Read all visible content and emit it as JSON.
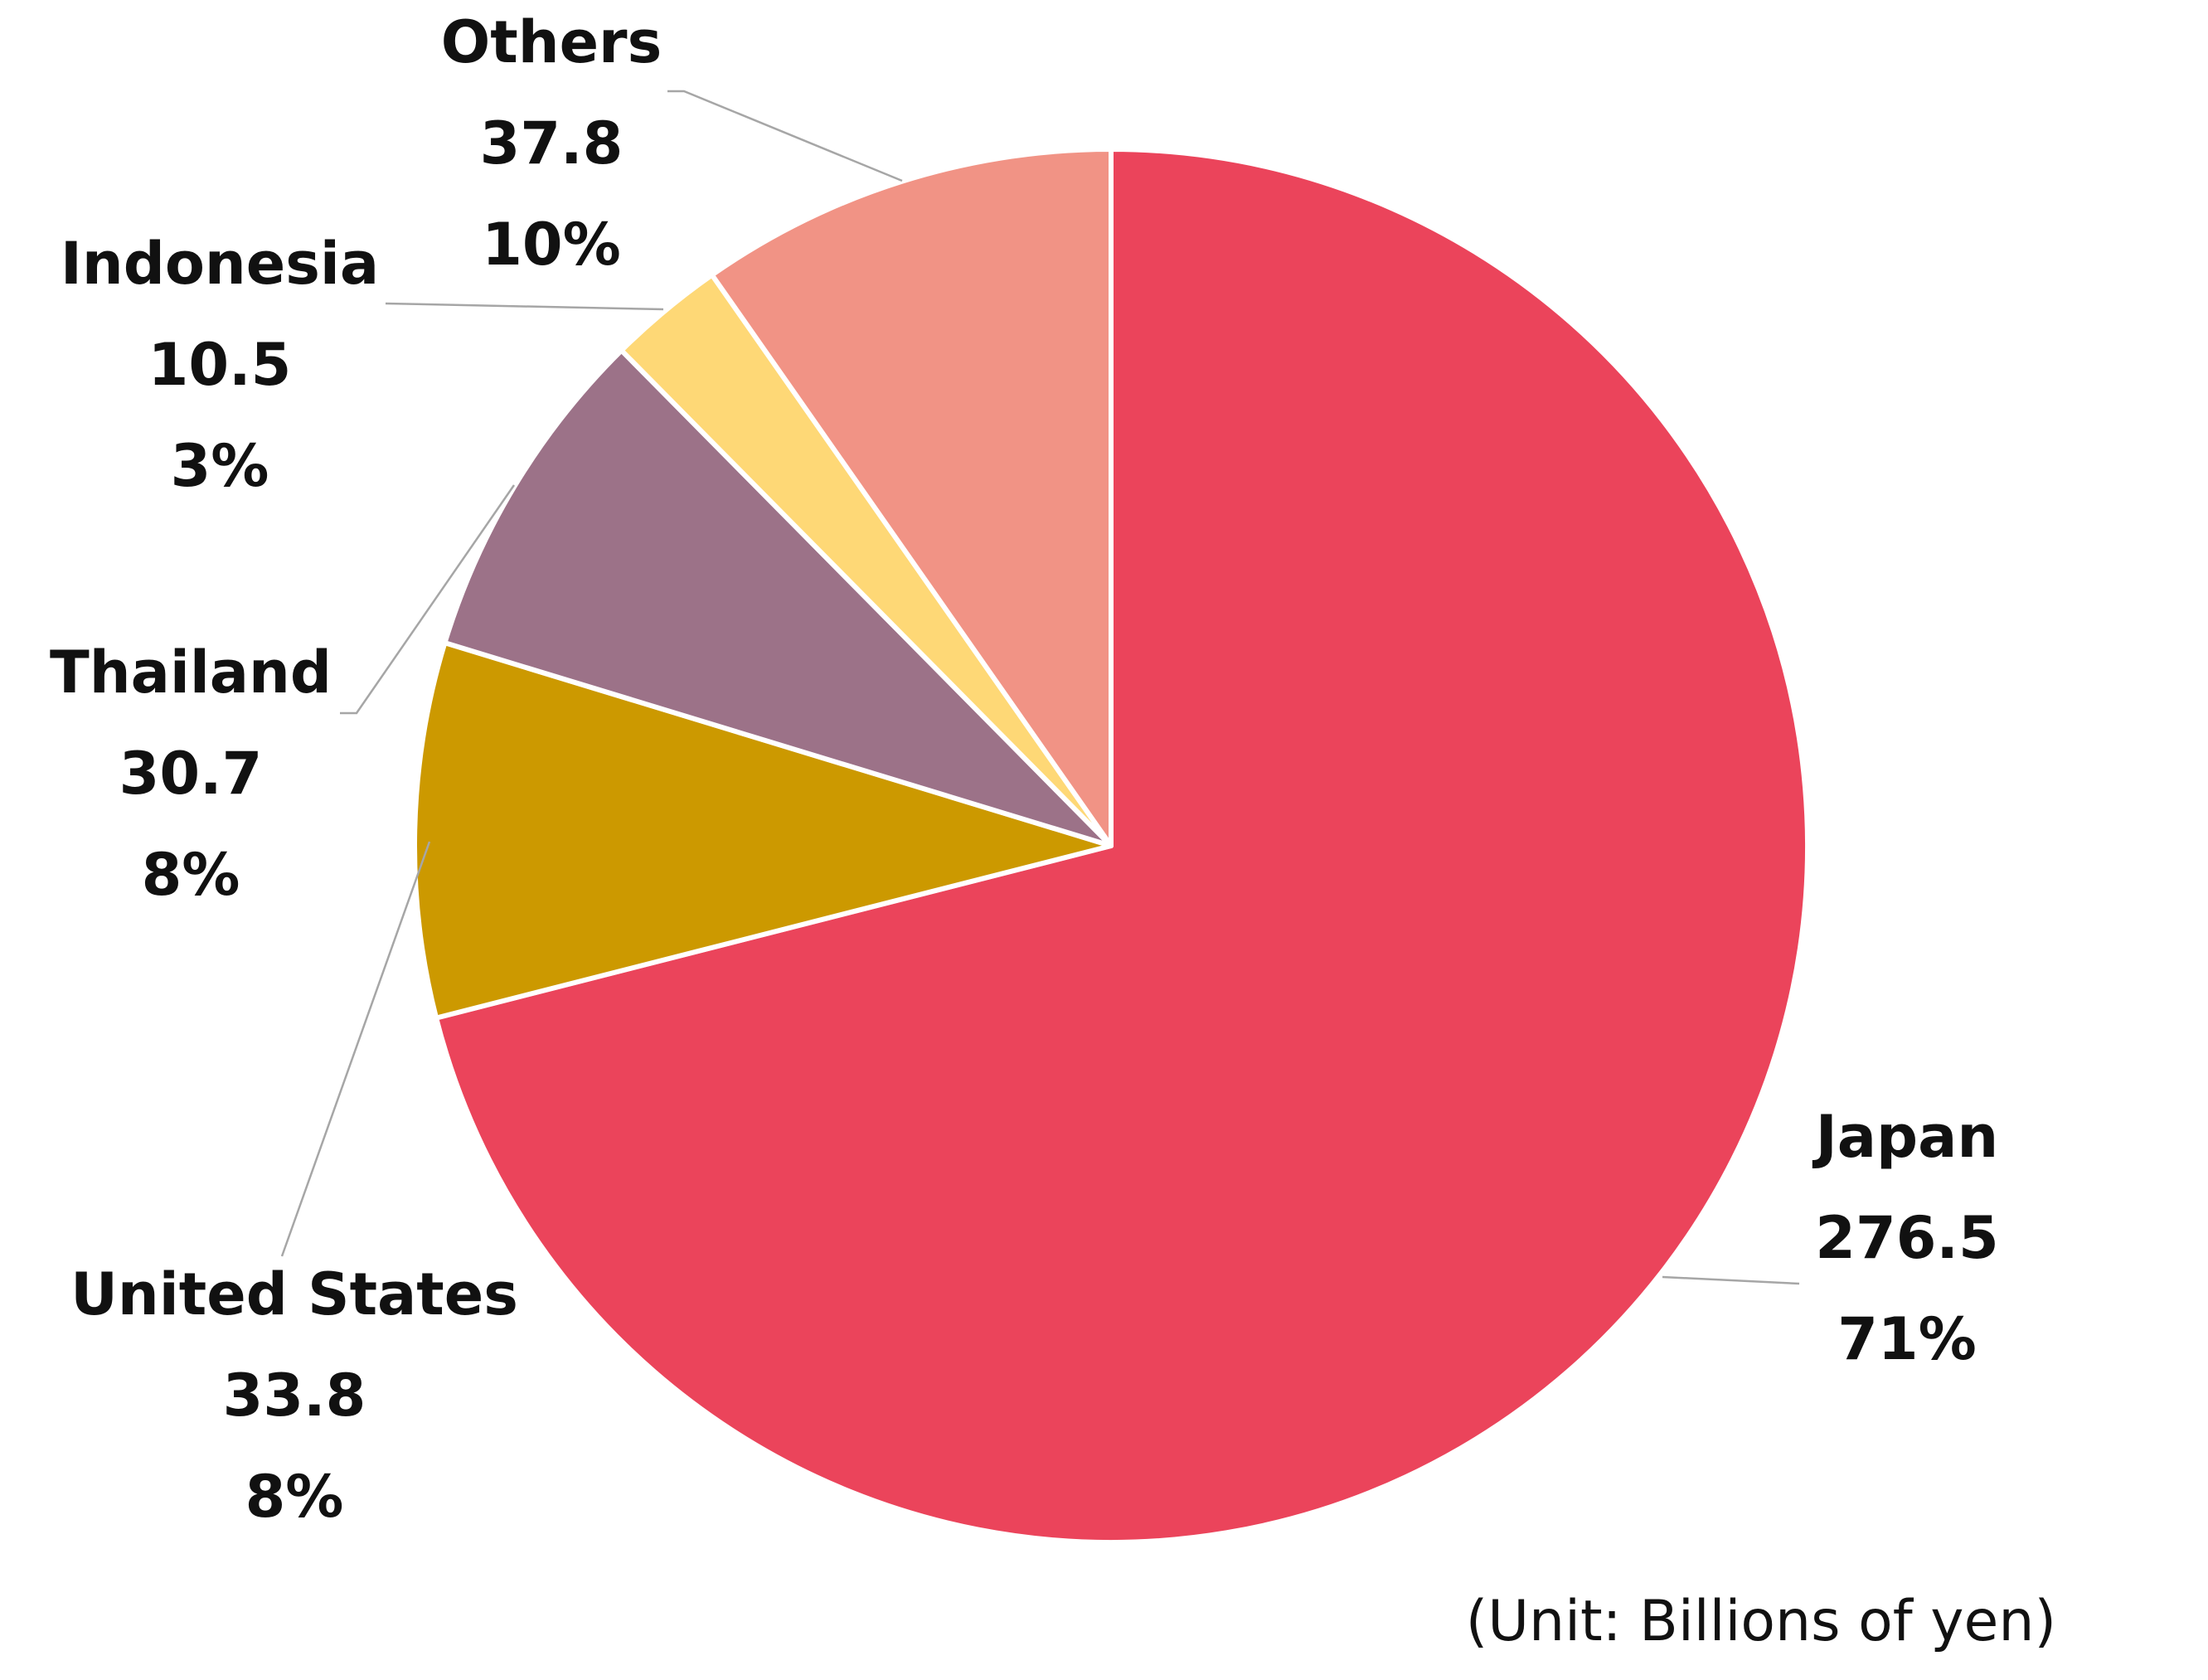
{
  "chart_data": {
    "type": "pie",
    "unit_note": "(Unit: Billions of yen)",
    "legend": "none",
    "slices": [
      {
        "label": "Japan",
        "value": 276.5,
        "value_label": "276.5",
        "percent_label": "71%",
        "color": "#EB445B"
      },
      {
        "label": "United States",
        "value": 33.8,
        "value_label": "33.8",
        "percent_label": "8%",
        "color": "#CC9900"
      },
      {
        "label": "Thailand",
        "value": 30.7,
        "value_label": "30.7",
        "percent_label": "8%",
        "color": "#9C7288"
      },
      {
        "label": "Indonesia",
        "value": 10.5,
        "value_label": "10.5",
        "percent_label": "3%",
        "color": "#FED876"
      },
      {
        "label": "Others",
        "value": 37.8,
        "value_label": "37.8",
        "percent_label": "10%",
        "color": "#F19385"
      }
    ]
  }
}
